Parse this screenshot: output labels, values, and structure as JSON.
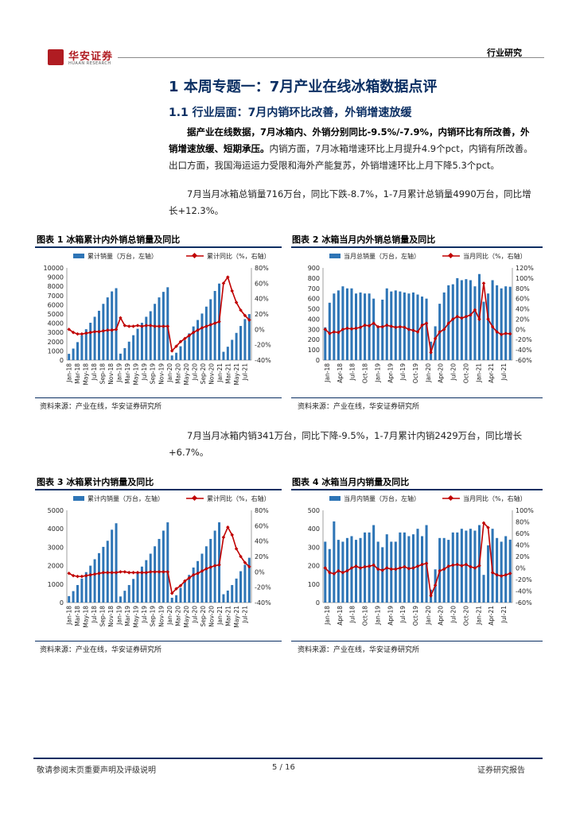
{
  "header": {
    "logo_text": "华安证券",
    "logo_sub": "HUAAN RESEARCH",
    "section": "行业研究"
  },
  "heading1": "1 本周专题一：7月产业在线冰箱数据点评",
  "heading2": "1.1 行业层面：7月内销环比改善，外销增速放缓",
  "para1_bold": "据产业在线数据，7月冰箱内、外销分别同比-9.5%/-7.9%，内销环比有所改善，外销增速放缓、短期承压。",
  "para1_rest": "内销方面，7月冰箱增速环比上月提升4.9个pct，内销有所改善。出口方面，我国海运运力受限和海外产能复苏，外销增速环比上月下降5.3个pct。",
  "para2": "7月当月冰箱总销量716万台，同比下跌-8.7%，1-7月累计总销量4990万台，同比增长+12.3%。",
  "para3": "7月当月冰箱内销341万台，同比下降-9.5%，1-7月累计内销2429万台，同比增长+6.7%。",
  "source_text": "资料来源：产业在线，华安证券研究所",
  "footer": {
    "left": "敬请参阅末页重要声明及评级说明",
    "page": "5 / 16",
    "right": "证券研究报告"
  },
  "colors": {
    "bar": "#2e75b6",
    "line": "#c00000",
    "navy": "#0b2f63"
  },
  "chart_data": [
    {
      "type": "bar",
      "title": "图表 1 冰箱累计内外销总销量及同比",
      "legend": [
        "累计销量（万台，左轴）",
        "累计同比（%，右轴）"
      ],
      "y_left": [
        0,
        1000,
        2000,
        3000,
        4000,
        5000,
        6000,
        7000,
        8000,
        9000,
        10000
      ],
      "y_right": [
        "-40%",
        "-20%",
        "0%",
        "20%",
        "40%",
        "60%",
        "80%"
      ],
      "ylim_left": [
        0,
        10000
      ],
      "ylim_right": [
        -40,
        80
      ],
      "x_ticks": [
        "Jan-18",
        "Mar-18",
        "May-18",
        "Jul-18",
        "Sep-18",
        "Nov-18",
        "Jan-19",
        "Mar-19",
        "May-19",
        "Jul-19",
        "Sep-19",
        "Nov-19",
        "Jan-20",
        "Mar-20",
        "May-20",
        "Jul-20",
        "Sep-20",
        "Nov-20",
        "Jan-21",
        "Mar-21",
        "May-21",
        "Jul-21"
      ],
      "bars": [
        680,
        1250,
        1950,
        2700,
        3350,
        4050,
        4700,
        5350,
        6100,
        6800,
        7450,
        7800,
        700,
        1300,
        2000,
        2700,
        3400,
        4050,
        4700,
        5300,
        6100,
        6800,
        7400,
        7900,
        500,
        800,
        1500,
        2150,
        2900,
        3650,
        4350,
        5050,
        5800,
        6600,
        7500,
        8300,
        900,
        1450,
        2200,
        2950,
        3700,
        4450,
        4990
      ],
      "line": [
        0,
        -4,
        -6,
        -6,
        -5,
        -4,
        -3,
        -3,
        -2,
        -1,
        -1,
        0,
        15,
        5,
        4,
        4,
        5,
        4,
        5,
        5,
        4,
        4,
        4,
        4,
        -28,
        -22,
        -16,
        -12,
        -8,
        -4,
        -1,
        2,
        4,
        6,
        8,
        10,
        60,
        68,
        50,
        35,
        25,
        18,
        12.3
      ]
    },
    {
      "type": "bar",
      "title": "图表 2 冰箱当月内外销总销量及同比",
      "legend": [
        "当月总销量（万台，左轴）",
        "当月同比（%，右轴）"
      ],
      "y_left": [
        0,
        100,
        200,
        300,
        400,
        500,
        600,
        700,
        800,
        900
      ],
      "y_right": [
        "-60%",
        "-40%",
        "-20%",
        "0%",
        "20%",
        "40%",
        "60%",
        "80%",
        "100%",
        "120%"
      ],
      "ylim_left": [
        0,
        900
      ],
      "ylim_right": [
        -60,
        120
      ],
      "x_ticks": [
        "Jan-18",
        "Apr-18",
        "Jul-18",
        "Oct-18",
        "Jan-19",
        "Apr-19",
        "Jul-19",
        "Oct-19",
        "Jan-20",
        "Apr-20",
        "Jul-20",
        "Oct-20",
        "Jan-21",
        "Apr-21",
        "Jul-21"
      ],
      "bars": [
        320,
        560,
        650,
        680,
        720,
        700,
        700,
        650,
        660,
        650,
        650,
        600,
        330,
        590,
        700,
        670,
        680,
        670,
        660,
        650,
        660,
        640,
        620,
        600,
        180,
        330,
        550,
        660,
        730,
        740,
        800,
        780,
        790,
        780,
        720,
        840,
        570,
        650,
        780,
        730,
        700,
        720,
        716
      ],
      "line": [
        0,
        -8,
        -5,
        -6,
        0,
        2,
        1,
        2,
        4,
        8,
        7,
        12,
        5,
        5,
        8,
        6,
        4,
        5,
        4,
        0,
        -2,
        -5,
        8,
        12,
        -45,
        -18,
        -5,
        0,
        12,
        20,
        25,
        22,
        25,
        28,
        38,
        20,
        90,
        20,
        5,
        -5,
        -10,
        -8,
        -8.7
      ]
    },
    {
      "type": "bar",
      "title": "图表 3 冰箱累计内销量及同比",
      "legend": [
        "累计内销量（万台，左轴）",
        "累计同比（%，右轴）"
      ],
      "y_left": [
        0,
        1000,
        2000,
        3000,
        4000,
        5000
      ],
      "y_right": [
        "-40%",
        "-20%",
        "0%",
        "20%",
        "40%",
        "60%",
        "80%"
      ],
      "ylim_left": [
        0,
        5000
      ],
      "ylim_right": [
        -40,
        80
      ],
      "x_ticks": [
        "Jan-18",
        "Mar-18",
        "May-18",
        "Jul-18",
        "Sep-18",
        "Nov-18",
        "Jan-19",
        "Mar-19",
        "May-19",
        "Jul-19",
        "Sep-19",
        "Nov-19",
        "Jan-20",
        "Mar-20",
        "May-20",
        "Jul-20",
        "Sep-20",
        "Nov-20",
        "Jan-21",
        "Mar-21",
        "May-21",
        "Jul-21"
      ],
      "bars": [
        350,
        620,
        950,
        1300,
        1650,
        2000,
        2350,
        2680,
        3020,
        3350,
        3950,
        4300,
        330,
        640,
        950,
        1280,
        1600,
        1950,
        2300,
        2650,
        3050,
        3450,
        3900,
        4350,
        260,
        400,
        800,
        1150,
        1500,
        1900,
        2250,
        2650,
        3050,
        3450,
        3900,
        4350,
        450,
        650,
        950,
        1300,
        1700,
        2050,
        2429
      ],
      "line": [
        -2,
        -5,
        -6,
        -6,
        -5,
        -4,
        -3,
        -2,
        -1,
        -1,
        -1,
        -1,
        0,
        0,
        -1,
        -1,
        -1,
        -1,
        -1,
        0,
        0,
        0,
        0,
        0,
        -28,
        -22,
        -18,
        -12,
        -8,
        -4,
        -2,
        1,
        4,
        6,
        8,
        9,
        45,
        58,
        48,
        30,
        20,
        12,
        6.7
      ]
    },
    {
      "type": "bar",
      "title": "图表 4 冰箱当月内销量及同比",
      "legend": [
        "当月内销量（万台，左轴）",
        "当月同比（%，右轴）"
      ],
      "y_left": [
        0,
        100,
        200,
        300,
        400,
        500
      ],
      "y_right": [
        "-60%",
        "-40%",
        "-20%",
        "0%",
        "20%",
        "40%",
        "60%",
        "80%",
        "100%"
      ],
      "ylim_left": [
        0,
        500
      ],
      "ylim_right": [
        -60,
        100
      ],
      "x_ticks": [
        "Jan-18",
        "Apr-18",
        "Jul-18",
        "Oct-18",
        "Jan-19",
        "Apr-19",
        "Jul-19",
        "Oct-19",
        "Jan-20",
        "Apr-20",
        "Jul-20",
        "Oct-20",
        "Jan-21",
        "Apr-21",
        "Jul-21"
      ],
      "bars": [
        330,
        290,
        440,
        340,
        330,
        350,
        360,
        340,
        350,
        380,
        380,
        420,
        330,
        300,
        370,
        330,
        330,
        380,
        380,
        360,
        370,
        400,
        360,
        420,
        70,
        180,
        350,
        350,
        340,
        380,
        380,
        400,
        390,
        400,
        390,
        420,
        150,
        310,
        400,
        350,
        330,
        360,
        341
      ],
      "line": [
        0,
        -8,
        -10,
        -5,
        -8,
        -5,
        0,
        3,
        0,
        2,
        3,
        5,
        -2,
        -4,
        0,
        -2,
        -2,
        0,
        2,
        -1,
        0,
        3,
        6,
        8,
        -48,
        -30,
        -5,
        -2,
        3,
        5,
        6,
        4,
        6,
        2,
        0,
        4,
        78,
        70,
        -8,
        -12,
        -14,
        -12,
        -9.5
      ]
    }
  ]
}
